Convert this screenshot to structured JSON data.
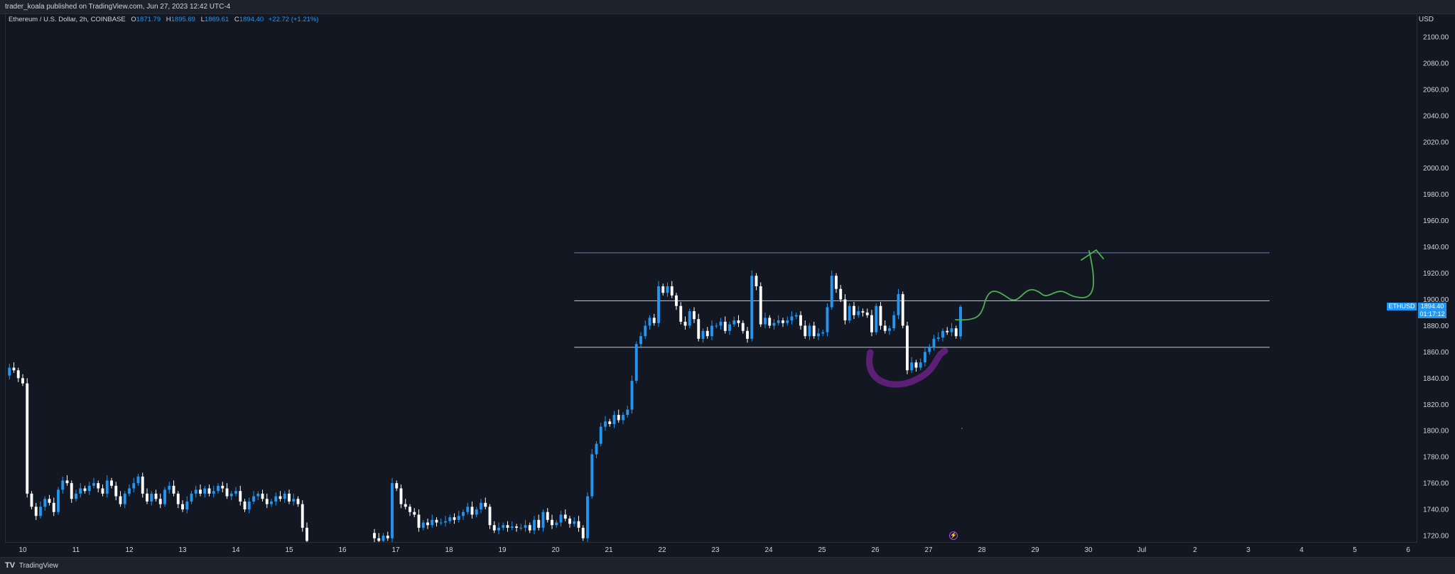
{
  "header": {
    "publish_text": "trader_koala published on TradingView.com, Jun 27, 2023 12:42 UTC-4"
  },
  "legend": {
    "symbol": "Ethereum / U.S. Dollar, 2h, COINBASE",
    "open_label": "O",
    "open": "1871.79",
    "high_label": "H",
    "high": "1895.69",
    "low_label": "L",
    "low": "1869.61",
    "close_label": "C",
    "close": "1894.40",
    "change": "+22.72 (+1.21%)"
  },
  "price_axis": {
    "currency": "USD"
  },
  "price_tag": {
    "symbol": "ETHUSD",
    "price": "1894.40",
    "countdown": "01:17:12"
  },
  "footer": {
    "logo": "TV",
    "brand": "TradingView"
  },
  "colors": {
    "up": "#2196f3",
    "down": "#ffffff",
    "bg": "#131722",
    "drawing_green": "#4caf50",
    "drawing_purple": "#5b2075",
    "level_blue": "#5d7fc2"
  },
  "chart_data": {
    "type": "candlestick",
    "title": "Ethereum / U.S. Dollar, 2h, COINBASE",
    "ylabel": "USD",
    "ylim": [
      1712,
      2108
    ],
    "y_ticks": [
      1720,
      1740,
      1760,
      1780,
      1800,
      1820,
      1840,
      1860,
      1880,
      1900,
      1920,
      1940,
      1960,
      1980,
      2000,
      2020,
      2040,
      2060,
      2080,
      2100
    ],
    "x_ticks": [
      "10",
      "11",
      "12",
      "13",
      "14",
      "15",
      "16",
      "17",
      "18",
      "19",
      "20",
      "21",
      "22",
      "23",
      "24",
      "25",
      "26",
      "27",
      "28",
      "29",
      "30",
      "Jul",
      "2",
      "3",
      "4",
      "5",
      "6"
    ],
    "x_tick_day_offsets": [
      0,
      1,
      2,
      3,
      4,
      5,
      6,
      7,
      8,
      9,
      10,
      11,
      12,
      13,
      14,
      15,
      16,
      17,
      18,
      19,
      20,
      21,
      22,
      23,
      24,
      25,
      26
    ],
    "bars_per_day": 12,
    "segments": [
      {
        "start_day": -0.25,
        "points": [
          1842,
          1848,
          1846,
          1840,
          1836,
          1752,
          1742,
          1735,
          1742,
          1748,
          1745,
          1738,
          1755,
          1762,
          1760,
          1748,
          1752,
          1756,
          1754,
          1758,
          1760,
          1756,
          1752,
          1762,
          1758,
          1750,
          1744,
          1752,
          1756,
          1760,
          1765,
          1752,
          1746,
          1752,
          1748,
          1744,
          1755,
          1758,
          1752,
          1744,
          1740,
          1746,
          1752,
          1755,
          1752,
          1756,
          1752,
          1754,
          1758,
          1756,
          1750,
          1752,
          1754,
          1746,
          1740,
          1746,
          1750,
          1752,
          1748,
          1744,
          1746,
          1750,
          1748,
          1752,
          1746,
          1748,
          1744,
          1726,
          1716
        ]
      },
      {
        "start_day": 6.6,
        "points": [
          1722,
          1718,
          1716,
          1720,
          1718,
          1760,
          1756,
          1744,
          1742,
          1738,
          1736,
          1726,
          1730,
          1728,
          1732,
          1730,
          1730,
          1731,
          1734,
          1732,
          1735,
          1738,
          1742,
          1736,
          1740,
          1745,
          1742,
          1728,
          1724,
          1726,
          1728,
          1726,
          1727,
          1726,
          1726,
          1728,
          1724,
          1732,
          1726,
          1738,
          1732,
          1728,
          1730,
          1736,
          1733,
          1729,
          1731,
          1726,
          1718,
          1750,
          1782,
          1790,
          1803,
          1807,
          1805,
          1812,
          1808,
          1812,
          1816,
          1838,
          1866,
          1872,
          1880,
          1886,
          1882,
          1910,
          1905,
          1910,
          1903,
          1895,
          1883,
          1880,
          1891,
          1885,
          1870,
          1876,
          1872,
          1880,
          1880,
          1883,
          1876,
          1881,
          1884,
          1882,
          1876,
          1870,
          1918,
          1910,
          1881,
          1886,
          1880,
          1882,
          1884,
          1882,
          1884,
          1887,
          1888,
          1880,
          1872,
          1880,
          1872,
          1874,
          1875,
          1894,
          1918,
          1908,
          1900,
          1884,
          1895,
          1888,
          1891,
          1890,
          1888,
          1875,
          1895,
          1880,
          1876,
          1878,
          1888,
          1904,
          1880,
          1846,
          1852,
          1848,
          1852,
          1860,
          1864,
          1870,
          1871,
          1876,
          1875,
          1878,
          1872,
          1894
        ]
      }
    ],
    "last": {
      "open": 1871.79,
      "high": 1895.69,
      "low": 1869.61,
      "close": 1894.4
    },
    "levels": [
      1935.5,
      1899.0,
      1863.5
    ],
    "levels_start_day": 10.35,
    "levels_end_day": 23.4
  }
}
